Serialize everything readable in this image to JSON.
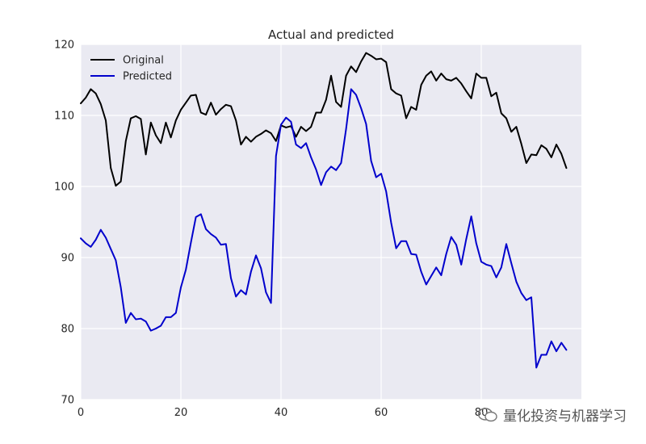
{
  "chart_data": {
    "type": "line",
    "title": "Actual and predicted",
    "xlabel": "",
    "ylabel": "",
    "xlim": [
      0,
      100
    ],
    "ylim": [
      70,
      120
    ],
    "xticks": [
      0,
      20,
      40,
      60,
      80
    ],
    "yticks": [
      70,
      80,
      90,
      100,
      110,
      120
    ],
    "grid": true,
    "legend_position": "top-left",
    "series": [
      {
        "name": "Original",
        "color": "#000000",
        "x": [
          0,
          1,
          2,
          3,
          4,
          5,
          6,
          7,
          8,
          9,
          10,
          11,
          12,
          13,
          14,
          15,
          16,
          17,
          18,
          19,
          20,
          21,
          22,
          23,
          24,
          25,
          26,
          27,
          28,
          29,
          30,
          31,
          32,
          33,
          34,
          35,
          36,
          37,
          38,
          39,
          40,
          41,
          42,
          43,
          44,
          45,
          46,
          47,
          48,
          49,
          50,
          51,
          52,
          53,
          54,
          55,
          56,
          57,
          58,
          59,
          60,
          61,
          62,
          63,
          64,
          65,
          66,
          67,
          68,
          69,
          70,
          71,
          72,
          73,
          74,
          75,
          76,
          77,
          78,
          79,
          80,
          81,
          82,
          83,
          84,
          85,
          86,
          87,
          88,
          89,
          90,
          91,
          92,
          93,
          94,
          95,
          96,
          97
        ],
        "values": [
          111.7,
          112.5,
          113.7,
          113.1,
          111.6,
          109.3,
          102.6,
          100.1,
          100.7,
          106.4,
          109.6,
          109.9,
          109.5,
          104.5,
          109.0,
          107.2,
          106.1,
          109.0,
          106.9,
          109.3,
          110.8,
          111.8,
          112.8,
          112.9,
          110.4,
          110.1,
          111.8,
          110.1,
          110.9,
          111.5,
          111.3,
          109.3,
          105.9,
          107.0,
          106.3,
          107.0,
          107.4,
          107.9,
          107.5,
          106.4,
          108.6,
          108.3,
          108.5,
          107.0,
          108.4,
          107.8,
          108.4,
          110.4,
          110.4,
          112.2,
          115.6,
          111.9,
          111.2,
          115.6,
          116.9,
          116.1,
          117.6,
          118.8,
          118.4,
          117.9,
          118.0,
          117.5,
          113.7,
          113.1,
          112.8,
          109.6,
          111.2,
          110.8,
          114.3,
          115.6,
          116.2,
          114.9,
          115.9,
          115.1,
          114.9,
          115.3,
          114.5,
          113.4,
          112.4,
          115.9,
          115.3,
          115.3,
          112.7,
          113.2,
          110.3,
          109.6,
          107.7,
          108.4,
          106.0,
          103.3,
          104.5,
          104.4,
          105.8,
          105.3,
          104.1,
          105.9,
          104.6,
          102.6
        ]
      },
      {
        "name": "Predicted",
        "color": "#0000cc",
        "x": [
          0,
          1,
          2,
          3,
          4,
          5,
          6,
          7,
          8,
          9,
          10,
          11,
          12,
          13,
          14,
          15,
          16,
          17,
          18,
          19,
          20,
          21,
          22,
          23,
          24,
          25,
          26,
          27,
          28,
          29,
          30,
          31,
          32,
          33,
          34,
          35,
          36,
          37,
          38,
          39,
          40,
          41,
          42,
          43,
          44,
          45,
          46,
          47,
          48,
          49,
          50,
          51,
          52,
          53,
          54,
          55,
          56,
          57,
          58,
          59,
          60,
          61,
          62,
          63,
          64,
          65,
          66,
          67,
          68,
          69,
          70,
          71,
          72,
          73,
          74,
          75,
          76,
          77,
          78,
          79,
          80,
          81,
          82,
          83,
          84,
          85,
          86,
          87,
          88,
          89,
          90,
          91,
          92,
          93,
          94,
          95,
          96,
          97
        ],
        "values": [
          92.7,
          92.0,
          91.5,
          92.5,
          93.9,
          92.8,
          91.2,
          89.6,
          85.8,
          80.8,
          82.2,
          81.3,
          81.4,
          81.0,
          79.7,
          80.0,
          80.4,
          81.6,
          81.6,
          82.2,
          85.8,
          88.3,
          92.1,
          95.7,
          96.1,
          94.0,
          93.3,
          92.8,
          91.8,
          91.9,
          87.1,
          84.5,
          85.4,
          84.8,
          88.0,
          90.3,
          88.5,
          85.1,
          83.6,
          104.3,
          108.7,
          109.7,
          109.1,
          105.9,
          105.4,
          106.1,
          104.1,
          102.4,
          100.2,
          102.0,
          102.8,
          102.3,
          103.3,
          108.1,
          113.7,
          112.9,
          111.0,
          108.8,
          103.6,
          101.3,
          101.8,
          99.3,
          94.9,
          91.3,
          92.3,
          92.3,
          90.5,
          90.4,
          88.0,
          86.2,
          87.4,
          88.6,
          87.5,
          90.5,
          92.9,
          91.8,
          89.0,
          92.6,
          95.8,
          92.0,
          89.4,
          89.0,
          88.8,
          87.2,
          88.6,
          91.9,
          89.2,
          86.6,
          85.0,
          84.0,
          84.4,
          74.5,
          76.3,
          76.3,
          78.2,
          76.8,
          78.0,
          77.0
        ]
      }
    ]
  },
  "watermark": {
    "icon": "wechat-icon",
    "text": "量化投资与机器学习"
  }
}
